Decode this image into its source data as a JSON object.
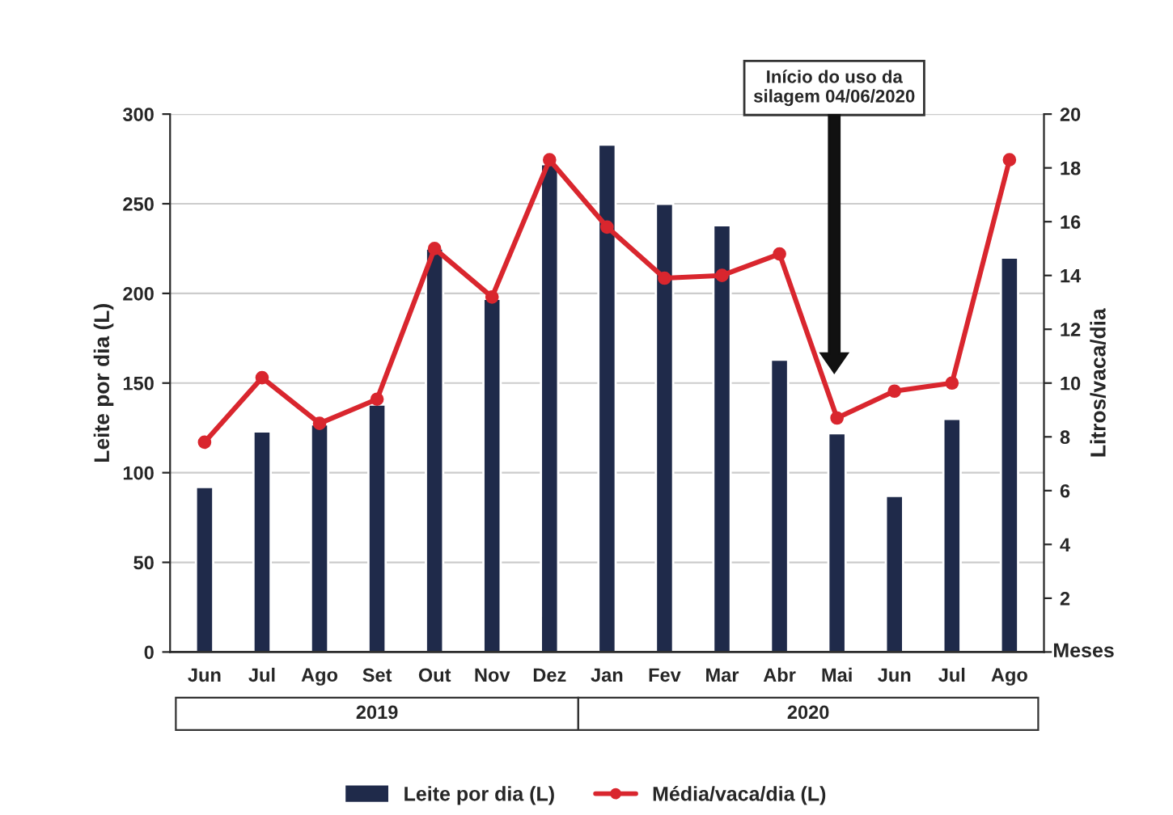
{
  "chart_data": {
    "type": "bar",
    "xlabel": "Meses",
    "ylabel": "Leite por dia (L)",
    "y2label": "Litros/vaca/dia",
    "categories": [
      "Jun",
      "Jul",
      "Ago",
      "Set",
      "Out",
      "Nov",
      "Dez",
      "Jan",
      "Fev",
      "Mar",
      "Abr",
      "Mai",
      "Jun",
      "Jul",
      "Ago"
    ],
    "series": [
      {
        "name": "Leite por dia (L)",
        "color": "#1f2a4a",
        "values": [
          92,
          123,
          127,
          138,
          225,
          197,
          272,
          283,
          250,
          238,
          163,
          122,
          87,
          130,
          220
        ]
      },
      {
        "name": "Média/vaca/dia (L)",
        "type": "line",
        "axis": "y2",
        "color": "#d9262e",
        "marker": "circle",
        "values": [
          7.8,
          10.2,
          8.5,
          9.4,
          15.0,
          13.2,
          18.3,
          15.8,
          13.9,
          14.0,
          14.8,
          8.7,
          9.7,
          10.0,
          18.3
        ]
      }
    ],
    "ylim": [
      0,
      300
    ],
    "yticks": [
      0,
      50,
      100,
      150,
      200,
      250,
      300
    ],
    "y2lim": [
      0,
      20
    ],
    "y2ticks": [
      {
        "value": 0,
        "label": null
      },
      2,
      4,
      6,
      8,
      10,
      12,
      14,
      16,
      18,
      20
    ],
    "grid": "y",
    "legend": "bottom",
    "annotations": [
      "Início do uso da\nsilagem 04/06/2020",
      "2019",
      "2020"
    ]
  }
}
